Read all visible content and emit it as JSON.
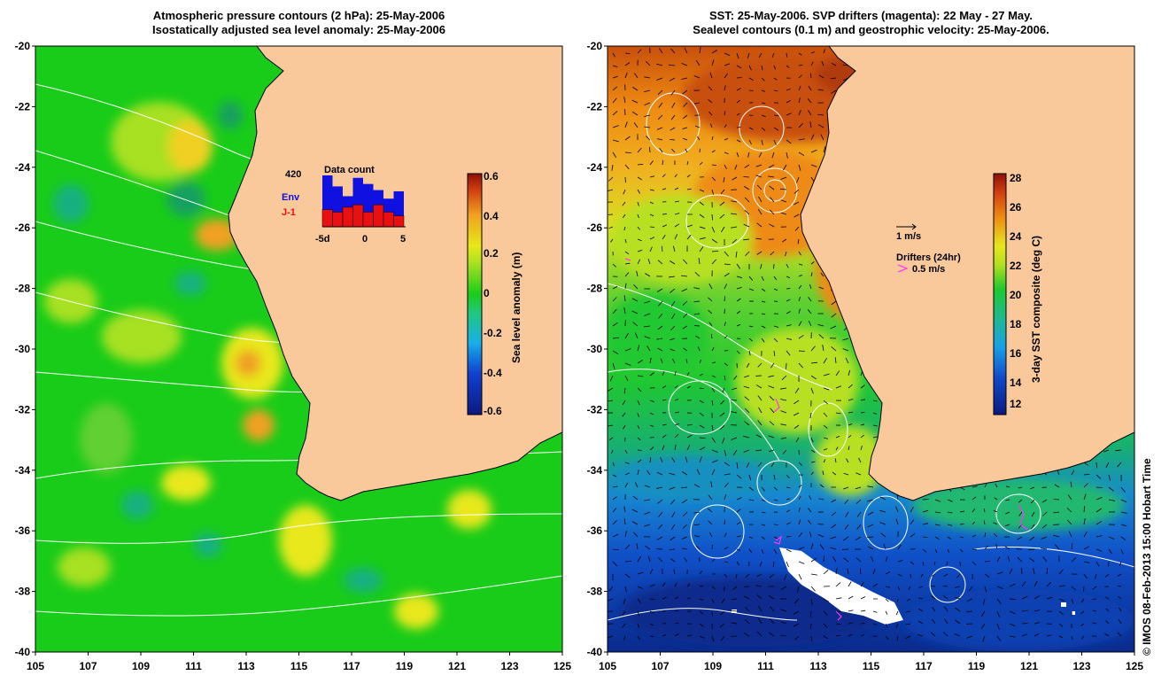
{
  "left_panel": {
    "title_line1": "Atmospheric pressure contours (2 hPa): 25-May-2006",
    "title_line2": "Isostatically adjusted sea level anomaly: 25-May-2006",
    "colorbar_label": "Sea level anomaly (m)",
    "colorbar_ticks": [
      "0.6",
      "0.4",
      "0.2",
      "0",
      "-0.2",
      "-0.4",
      "-0.6"
    ],
    "inset": {
      "title": "Data count",
      "count": "420",
      "series_env": "Env",
      "series_j1": "J-1",
      "xticks": [
        "-5d",
        "0",
        "5"
      ],
      "env_values": [
        420,
        330,
        250,
        400,
        350,
        300,
        230,
        290
      ],
      "j1_values": [
        140,
        120,
        160,
        180,
        120,
        180,
        120,
        90
      ]
    }
  },
  "right_panel": {
    "title_line1": "SST: 25-May-2006. SVP drifters (magenta): 22 May - 27 May.",
    "title_line2": "Sealevel contours (0.1 m) and geostrophic velocity: 25-May-2006.",
    "colorbar_label": "3-day SST composite (deg C)",
    "colorbar_ticks": [
      "28",
      "26",
      "24",
      "22",
      "20",
      "18",
      "16",
      "14",
      "12"
    ],
    "legend_velocity": "1 m/s",
    "legend_drifters": "Drifters (24hr)",
    "legend_drifter_speed": "0.5 m/s"
  },
  "axes": {
    "x_ticks": [
      "105",
      "107",
      "109",
      "111",
      "113",
      "115",
      "117",
      "119",
      "121",
      "123",
      "125"
    ],
    "y_ticks": [
      "-20",
      "-22",
      "-24",
      "-26",
      "-28",
      "-30",
      "-32",
      "-34",
      "-36",
      "-38",
      "-40"
    ]
  },
  "colors": {
    "land": "#f9c99b",
    "sla_green": "#19cc19",
    "sla_yellow": "#e8e81a",
    "sla_orange": "#f0a020",
    "sst_red": "#c83c0c",
    "sst_orange": "#ee8a12",
    "sst_yellow": "#e6e61e",
    "sst_green": "#20c830",
    "sst_teal": "#18a898",
    "sst_blue": "#1060d0",
    "sst_navy": "#0a2a8c",
    "drifter": "#ff33ff"
  },
  "credit": "© IMOS 08-Feb-2013 15:00 Hobart Time"
}
